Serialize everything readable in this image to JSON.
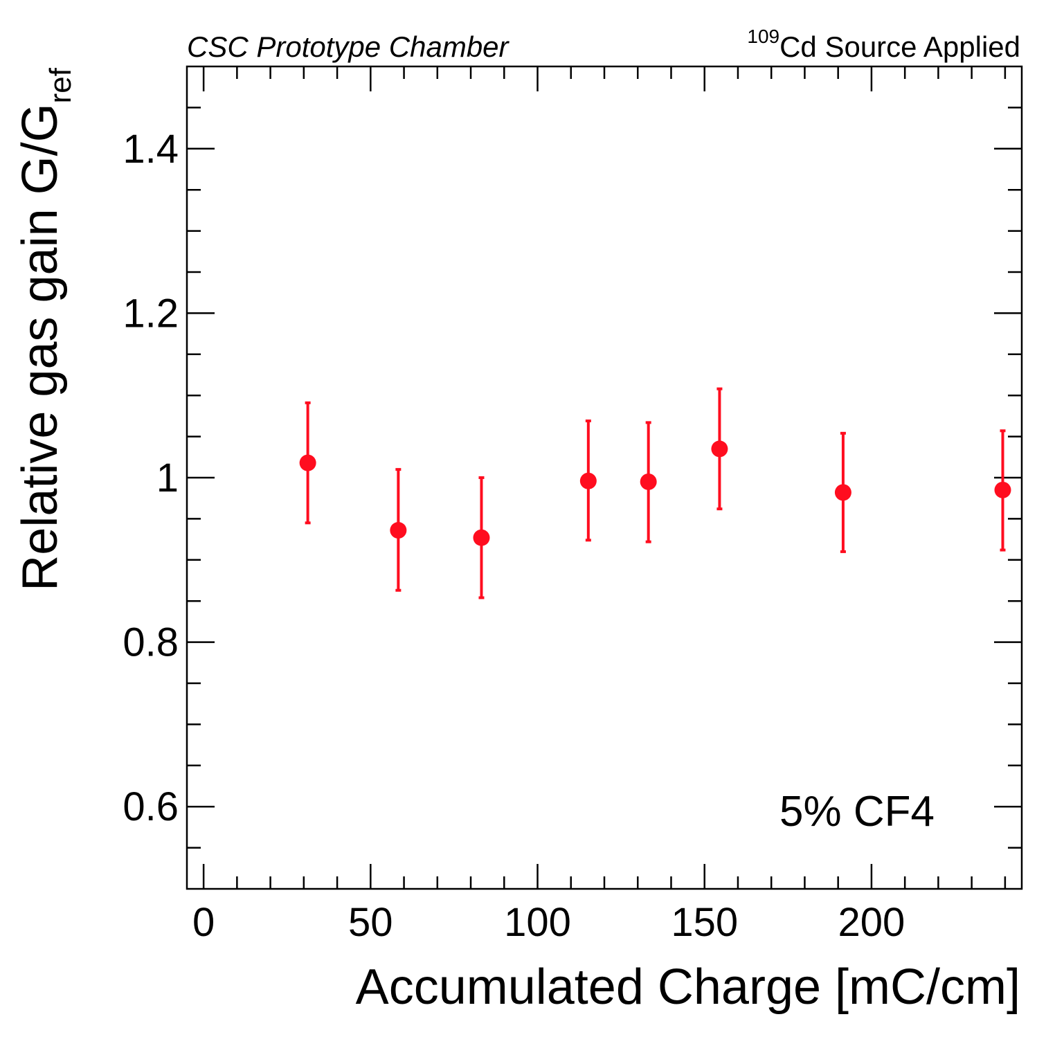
{
  "chart_data": {
    "type": "scatter",
    "title": "",
    "xlabel": "Accumulated Charge [mC/cm]",
    "ylabel": {
      "main": "Relative gas gain G/G",
      "subscript": "ref"
    },
    "xlim": [
      -5,
      245
    ],
    "ylim": [
      0.5,
      1.5
    ],
    "xticks": [
      0,
      50,
      100,
      150,
      200
    ],
    "xtick_labels": [
      "0",
      "50",
      "100",
      "150",
      "200"
    ],
    "yticks": [
      0.6,
      0.8,
      1.0,
      1.2,
      1.4
    ],
    "ytick_labels": [
      "0.6",
      "0.8",
      "1",
      "1.2",
      "1.4"
    ],
    "grid": false,
    "annotations": {
      "top_left": "CSC Prototype Chamber",
      "top_right_superscript": "109",
      "top_right": "Cd Source Applied",
      "in_plot": "5% CF4"
    },
    "series": [
      {
        "color": "#ff0d1f",
        "points": [
          {
            "x": 31.2,
            "y": 1.018,
            "err_low": 0.073,
            "err_high": 0.073
          },
          {
            "x": 58.3,
            "y": 0.936,
            "err_low": 0.073,
            "err_high": 0.074
          },
          {
            "x": 83.2,
            "y": 0.927,
            "err_low": 0.073,
            "err_high": 0.073
          },
          {
            "x": 115.2,
            "y": 0.996,
            "err_low": 0.072,
            "err_high": 0.073
          },
          {
            "x": 133.2,
            "y": 0.995,
            "err_low": 0.073,
            "err_high": 0.072
          },
          {
            "x": 154.5,
            "y": 1.035,
            "err_low": 0.073,
            "err_high": 0.073
          },
          {
            "x": 191.5,
            "y": 0.982,
            "err_low": 0.072,
            "err_high": 0.072
          },
          {
            "x": 239.3,
            "y": 0.985,
            "err_low": 0.073,
            "err_high": 0.072
          }
        ]
      }
    ]
  }
}
